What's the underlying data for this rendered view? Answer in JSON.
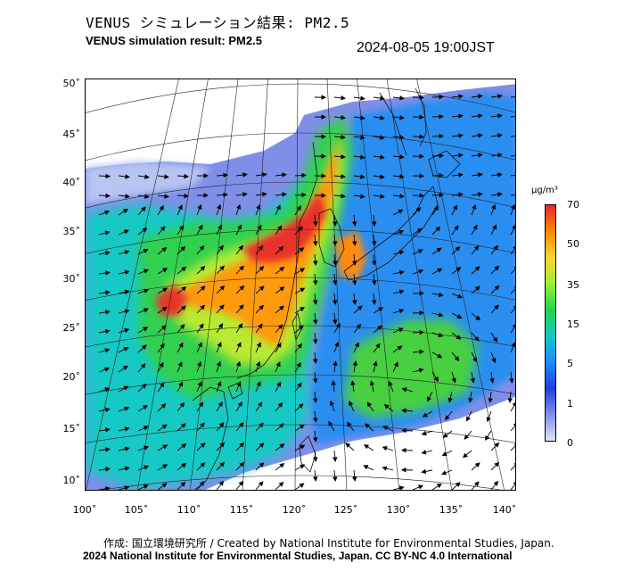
{
  "header": {
    "title_jp": "VENUS シミュレーション結果: PM2.5",
    "title_en": "VENUS simulation result: PM2.5",
    "timestamp": "2024-08-05 19:00JST"
  },
  "map": {
    "lat_labels": [
      "50˚",
      "45˚",
      "40˚",
      "35˚",
      "30˚",
      "25˚",
      "20˚",
      "15˚",
      "10˚"
    ],
    "lon_labels": [
      "100˚",
      "105˚",
      "110˚",
      "115˚",
      "120˚",
      "125˚",
      "130˚",
      "135˚",
      "140˚"
    ]
  },
  "legend": {
    "unit": "µg/m³",
    "labels": [
      "70",
      "50",
      "35",
      "15",
      "5",
      "1",
      "0"
    ],
    "colors": [
      "#e8232b",
      "#ff8a00",
      "#ffd52e",
      "#9bf030",
      "#20d44a",
      "#14c8c8",
      "#1a8cff",
      "#2040e0",
      "#8090e8",
      "#e0e4f4"
    ]
  },
  "footer": {
    "credit_jp_en": "作成: 国立環境研究所 / Created by National Institute for Environmental Studies, Japan.",
    "copyright": "2024 National Institute for Environmental Studies, Japan. CC BY-NC 4.0 International"
  }
}
